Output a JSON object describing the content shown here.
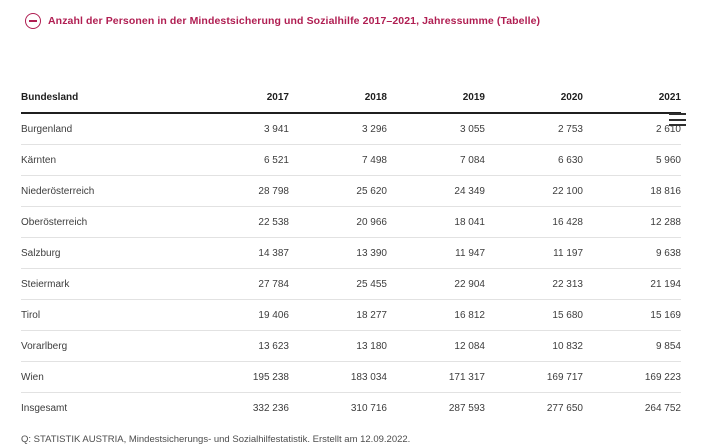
{
  "accent_color": "#b01e52",
  "header": {
    "toggle_icon": "minus-circle-icon",
    "title": "Anzahl der Personen in der Mindestsicherung und Sozialhilfe 2017–2021, Jahressumme (Tabelle)"
  },
  "table": {
    "menu_icon": "hamburger-menu-icon",
    "columns": [
      "Bundesland",
      "2017",
      "2018",
      "2019",
      "2020",
      "2021"
    ],
    "rows": [
      {
        "label": "Burgenland",
        "values": [
          "3 941",
          "3 296",
          "3 055",
          "2 753",
          "2 610"
        ]
      },
      {
        "label": "Kärnten",
        "values": [
          "6 521",
          "7 498",
          "7 084",
          "6 630",
          "5 960"
        ]
      },
      {
        "label": "Niederösterreich",
        "values": [
          "28 798",
          "25 620",
          "24 349",
          "22 100",
          "18 816"
        ]
      },
      {
        "label": "Oberösterreich",
        "values": [
          "22 538",
          "20 966",
          "18 041",
          "16 428",
          "12 288"
        ]
      },
      {
        "label": "Salzburg",
        "values": [
          "14 387",
          "13 390",
          "11 947",
          "11 197",
          "9 638"
        ]
      },
      {
        "label": "Steiermark",
        "values": [
          "27 784",
          "25 455",
          "22 904",
          "22 313",
          "21 194"
        ]
      },
      {
        "label": "Tirol",
        "values": [
          "19 406",
          "18 277",
          "16 812",
          "15 680",
          "15 169"
        ]
      },
      {
        "label": "Vorarlberg",
        "values": [
          "13 623",
          "13 180",
          "12 084",
          "10 832",
          "9 854"
        ]
      },
      {
        "label": "Wien",
        "values": [
          "195 238",
          "183 034",
          "171 317",
          "169 717",
          "169 223"
        ]
      },
      {
        "label": "Insgesamt",
        "values": [
          "332 236",
          "310 716",
          "287 593",
          "277 650",
          "264 752"
        ]
      }
    ]
  },
  "footer": {
    "source": "Q: STATISTIK AUSTRIA, Mindestsicherungs- und Sozialhilfestatistik. Erstellt am 12.09.2022."
  },
  "chart_data": {
    "type": "table",
    "title": "Anzahl der Personen in der Mindestsicherung und Sozialhilfe 2017–2021, Jahressumme (Tabelle)",
    "row_header": "Bundesland",
    "categories": [
      "2017",
      "2018",
      "2019",
      "2020",
      "2021"
    ],
    "series": [
      {
        "name": "Burgenland",
        "values": [
          3941,
          3296,
          3055,
          2753,
          2610
        ]
      },
      {
        "name": "Kärnten",
        "values": [
          6521,
          7498,
          7084,
          6630,
          5960
        ]
      },
      {
        "name": "Niederösterreich",
        "values": [
          28798,
          25620,
          24349,
          22100,
          18816
        ]
      },
      {
        "name": "Oberösterreich",
        "values": [
          22538,
          20966,
          18041,
          16428,
          12288
        ]
      },
      {
        "name": "Salzburg",
        "values": [
          14387,
          13390,
          11947,
          11197,
          9638
        ]
      },
      {
        "name": "Steiermark",
        "values": [
          27784,
          25455,
          22904,
          22313,
          21194
        ]
      },
      {
        "name": "Tirol",
        "values": [
          19406,
          18277,
          16812,
          15680,
          15169
        ]
      },
      {
        "name": "Vorarlberg",
        "values": [
          13623,
          13180,
          12084,
          10832,
          9854
        ]
      },
      {
        "name": "Wien",
        "values": [
          195238,
          183034,
          171317,
          169717,
          169223
        ]
      },
      {
        "name": "Insgesamt",
        "values": [
          332236,
          310716,
          287593,
          277650,
          264752
        ]
      }
    ],
    "source": "Q: STATISTIK AUSTRIA, Mindestsicherungs- und Sozialhilfestatistik. Erstellt am 12.09.2022."
  }
}
